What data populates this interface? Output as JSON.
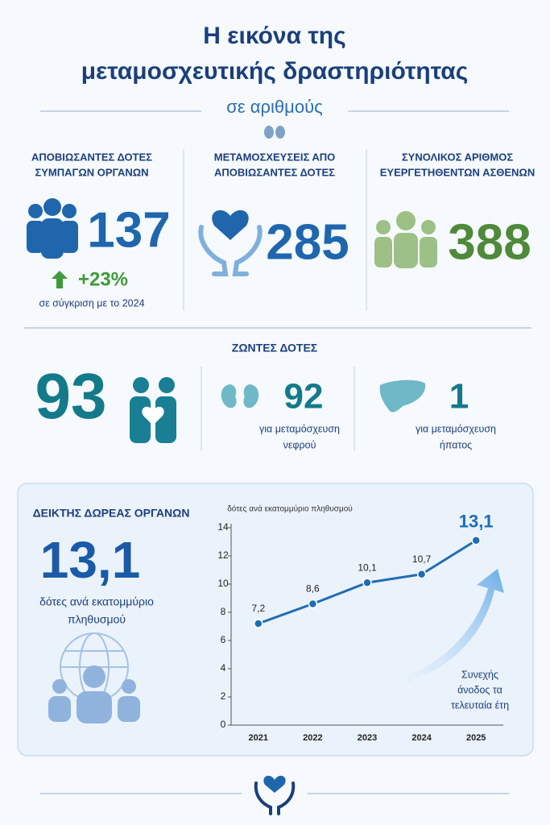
{
  "header": {
    "title": [
      "Η εικόνα της",
      "μεταμοσχευτικής δραστηριότητας"
    ],
    "subtitle": "σε αριθμούς"
  },
  "stats": [
    {
      "label": [
        "ΑΠΟΒΙΩΣΑΝΤΕΣ ΔΟΤΕΣ",
        "ΣΥΜΠΑΓΩΝ ΟΡΓΑΝΩΝ"
      ],
      "value": "137",
      "change": "+23%",
      "note": "σε σύγκριση με το 2024"
    },
    {
      "label": [
        "ΜΕΤΑΜΟΣΧΕΥΣΕΙΣ ΑΠΟ",
        "ΑΠΟΒΙΩΣΑΝΤΕΣ ΔΟΤΕΣ"
      ],
      "value": "285"
    },
    {
      "label": [
        "ΣΥΝΟΛΙΚΟΣ ΑΡΙΘΜΟΣ",
        "ΕΥΕΡΓΕΤΗΘΕΝΤΩΝ ΑΣΘΕΝΩΝ"
      ],
      "value": "388"
    }
  ],
  "living": {
    "title": "ΖΩΝΤΕΣ ΔΟΤΕΣ",
    "total": "93",
    "items": [
      {
        "value": "92",
        "label": [
          "για μεταμόσχευση",
          "νεφρού"
        ]
      },
      {
        "value": "1",
        "label": [
          "για μεταμόσχευση",
          "ήπατος"
        ]
      }
    ]
  },
  "index": {
    "title": "ΔΕΙΚΤΗΣ ΔΩΡΕΑΣ ΟΡΓΑΝΩΝ",
    "value": "13,1",
    "caption": [
      "δότες ανά εκατομμύριο",
      "πληθυσμού"
    ]
  },
  "chart_data": {
    "type": "line",
    "y_label": "δότες ανά εκατομμύριο πληθυσμού",
    "categories": [
      "2021",
      "2022",
      "2023",
      "2024",
      "2025"
    ],
    "values": [
      7.2,
      8.6,
      10.1,
      10.7,
      13.1
    ],
    "value_labels": [
      "7,2",
      "8,6",
      "10,1",
      "10,7",
      "13,1"
    ],
    "color": "#1f6db5",
    "ylim": [
      0,
      14
    ],
    "yticks": [
      0,
      2,
      4,
      6,
      8,
      10,
      12,
      14
    ],
    "grid": false,
    "annotation": [
      "Συνεχής",
      "άνοδος τα",
      "τελευταία έτη"
    ]
  }
}
